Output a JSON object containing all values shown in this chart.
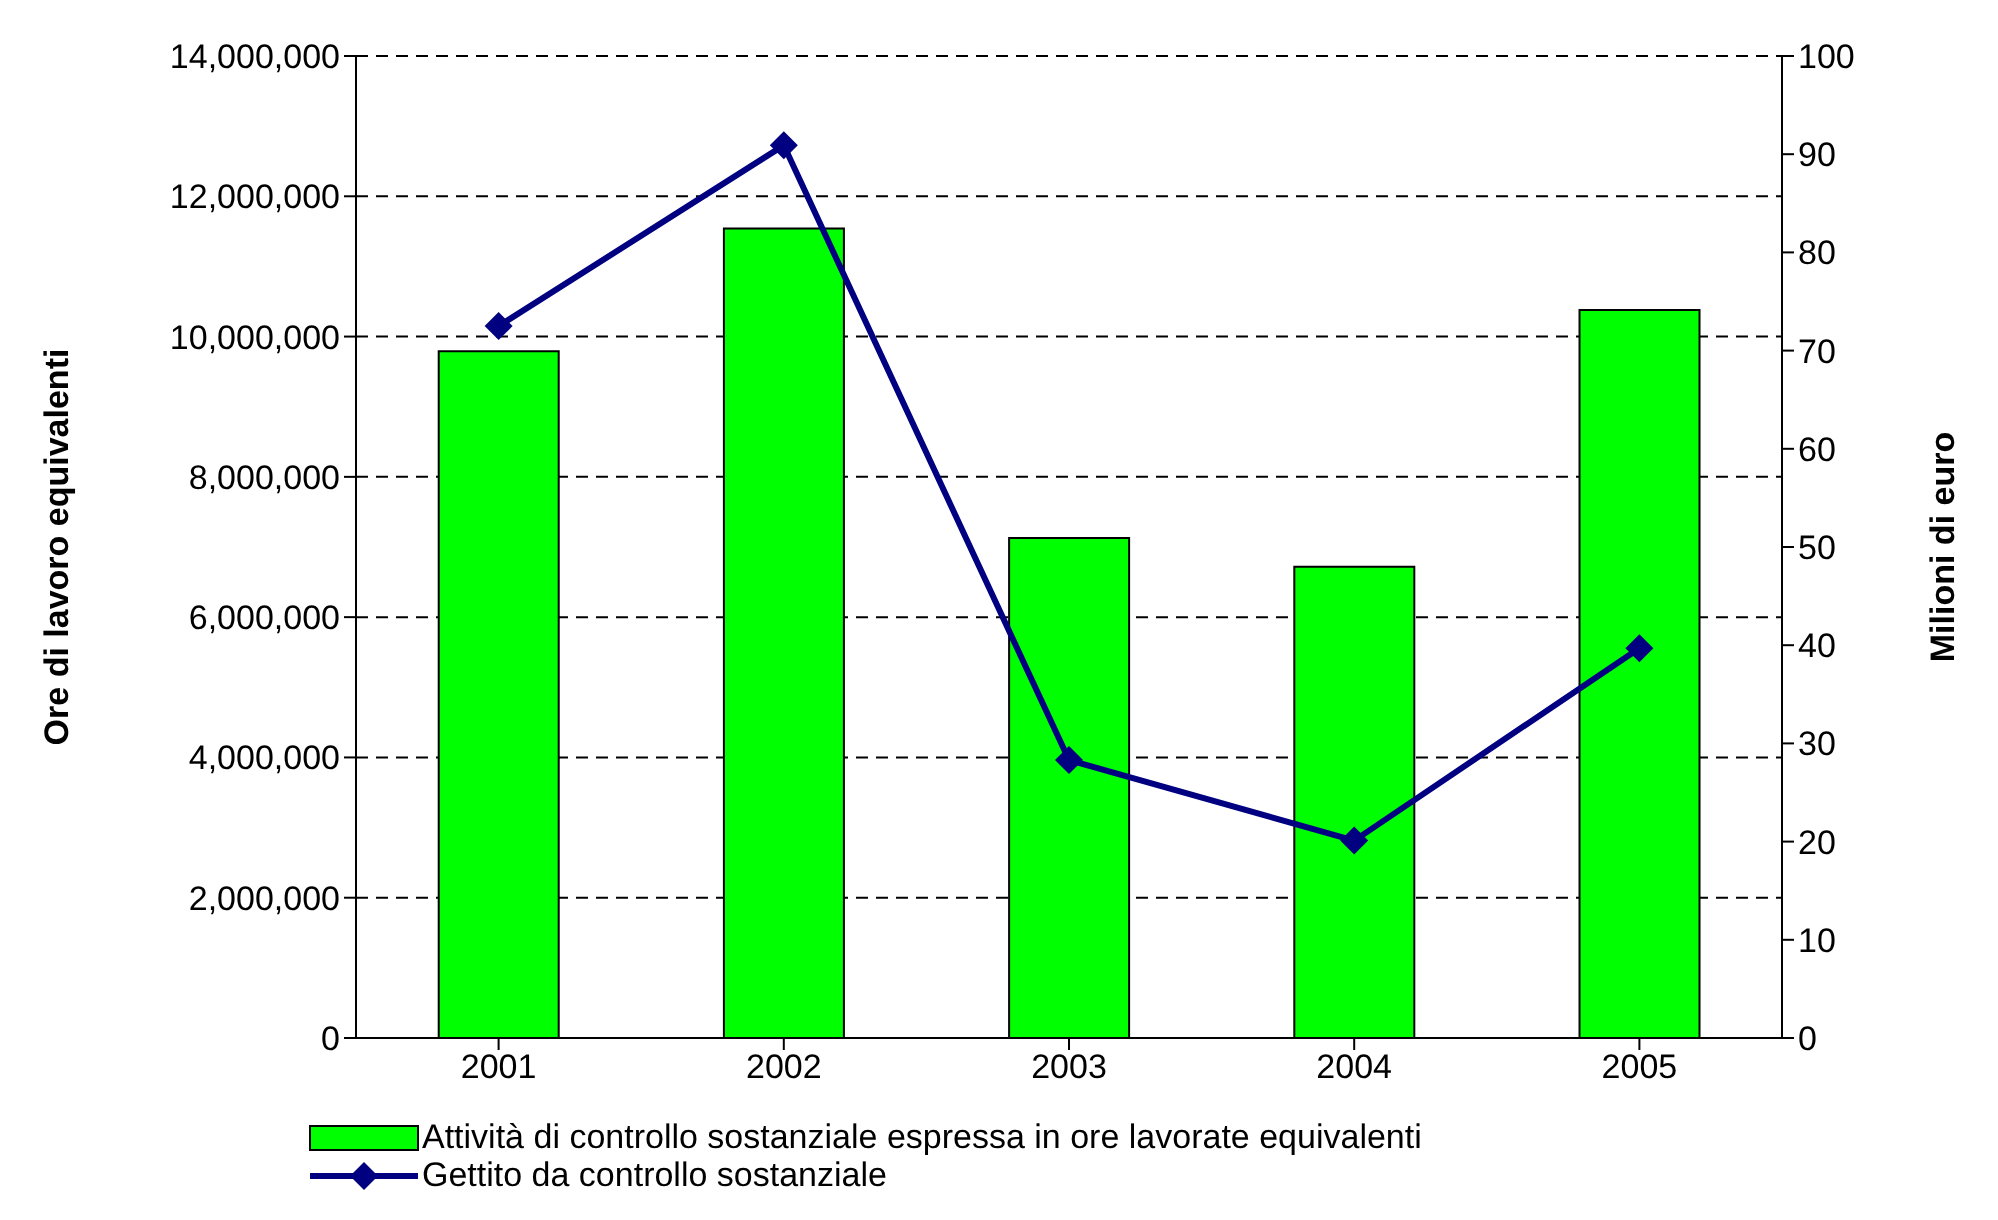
{
  "chart_data": {
    "type": "bar",
    "categories": [
      "2001",
      "2002",
      "2003",
      "2004",
      "2005"
    ],
    "ylabel": "Ore di lavoro equivalenti",
    "y2label": "Milioni di euro",
    "series": [
      {
        "name": "Attività di controllo sostanziale espressa in ore lavorate equivalenti",
        "color": "#00ff00",
        "values": [
          9790000,
          11540000,
          7130000,
          6720000,
          10380000
        ]
      },
      {
        "name": "Gettito da controllo sostanziale",
        "type": "line",
        "axis": "y2",
        "color": "#000080",
        "marker": "diamond",
        "values": [
          72.5,
          90.9,
          28.3,
          20.1,
          39.7
        ]
      }
    ],
    "ylim": [
      0,
      14000000
    ],
    "yticks": [
      {
        "value": 0,
        "label": "0"
      },
      {
        "value": 2000000,
        "label": "2,000,000"
      },
      {
        "value": 4000000,
        "label": "4,000,000"
      },
      {
        "value": 6000000,
        "label": "6,000,000"
      },
      {
        "value": 8000000,
        "label": "8,000,000"
      },
      {
        "value": 10000000,
        "label": "10,000,000"
      },
      {
        "value": 12000000,
        "label": "12,000,000"
      },
      {
        "value": 14000000,
        "label": "14,000,000"
      }
    ],
    "y2lim": [
      0,
      100
    ],
    "y2ticks": [
      0,
      10,
      20,
      30,
      40,
      50,
      60,
      70,
      80,
      90,
      100
    ],
    "grid": "y",
    "legend": "bottom"
  }
}
